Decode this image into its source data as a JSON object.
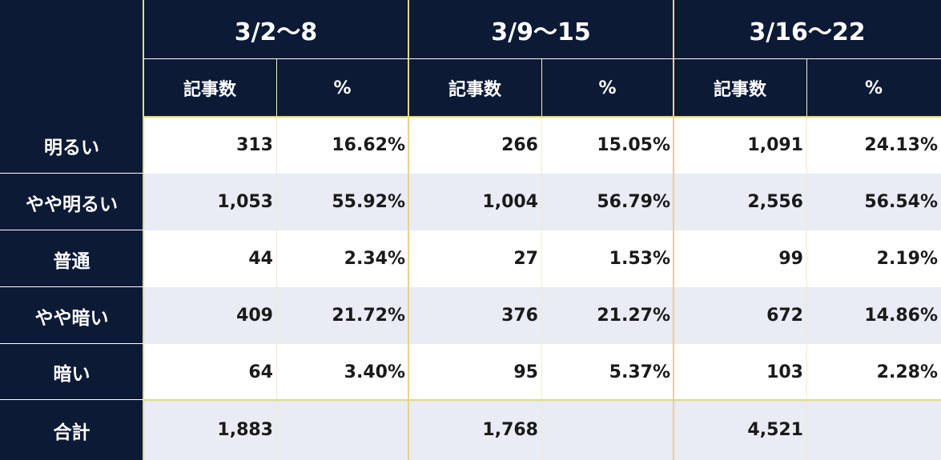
{
  "table": {
    "periods": [
      "3/2〜8",
      "3/9〜15",
      "3/16〜22"
    ],
    "subheaders": [
      "記事数",
      "%"
    ],
    "rows": [
      {
        "label": "明るい",
        "cells": [
          "313",
          "16.62%",
          "266",
          "15.05%",
          "1,091",
          "24.13%"
        ]
      },
      {
        "label": "やや明るい",
        "cells": [
          "1,053",
          "55.92%",
          "1,004",
          "56.79%",
          "2,556",
          "56.54%"
        ]
      },
      {
        "label": "普通",
        "cells": [
          "44",
          "2.34%",
          "27",
          "1.53%",
          "99",
          "2.19%"
        ]
      },
      {
        "label": "やや暗い",
        "cells": [
          "409",
          "21.72%",
          "376",
          "21.27%",
          "672",
          "14.86%"
        ]
      },
      {
        "label": "暗い",
        "cells": [
          "64",
          "3.40%",
          "95",
          "5.37%",
          "103",
          "2.28%"
        ]
      }
    ],
    "total": {
      "label": "合計",
      "cells": [
        "1,883",
        "",
        "1,768",
        "",
        "4,521",
        ""
      ]
    }
  },
  "colors": {
    "header_bg": "#0c1a36",
    "row_shade": "#e9ebf5",
    "divider": "#e6d48a"
  }
}
